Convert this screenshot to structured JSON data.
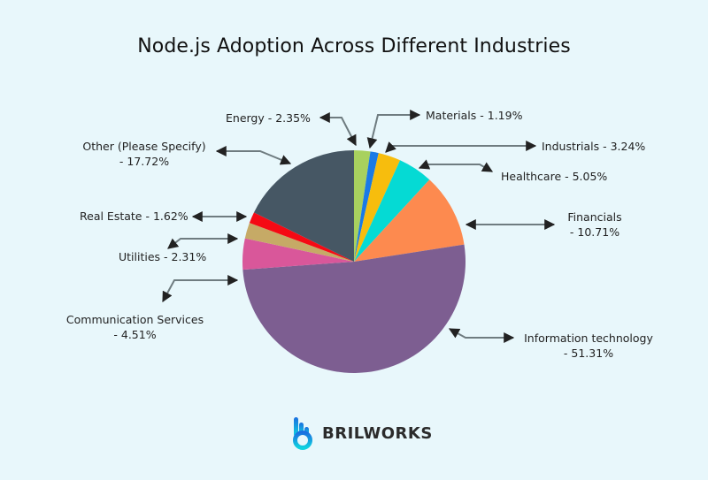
{
  "title": "Node.js Adoption Across Different Industries",
  "brand": {
    "name": "BRILWORKS"
  },
  "chart_data": {
    "type": "pie",
    "title": "Node.js Adoption Across Different Industries",
    "start_angle": "top, clockwise",
    "slices": [
      {
        "label": "Energy",
        "value": 2.35,
        "color": "#a8d15e",
        "text": "Energy - 2.35%"
      },
      {
        "label": "Materials",
        "value": 1.19,
        "color": "#1a7ae6",
        "text": "Materials - 1.19%"
      },
      {
        "label": "Industrials",
        "value": 3.24,
        "color": "#f7bd0d",
        "text": "Industrials - 3.24%"
      },
      {
        "label": "Healthcare",
        "value": 5.05,
        "color": "#05dad4",
        "text": "Healthcare - 5.05%"
      },
      {
        "label": "Financials",
        "value": 10.71,
        "color": "#fd8a4f",
        "text": "Financials - 10.71%"
      },
      {
        "label": "Information technology",
        "value": 51.31,
        "color": "#7d5e91",
        "text": "Information technology - 51.31%"
      },
      {
        "label": "Communication Services",
        "value": 4.51,
        "color": "#d9579a",
        "text": "Communication Services - 4.51%"
      },
      {
        "label": "Utilities",
        "value": 2.31,
        "color": "#c6aa66",
        "text": "Utilities - 2.31%"
      },
      {
        "label": "Real Estate",
        "value": 1.62,
        "color": "#f50a14",
        "text": "Real Estate - 1.62%"
      },
      {
        "label": "Other (Please Specify)",
        "value": 17.72,
        "color": "#465764",
        "text": "Other (Please Specify) - 17.72%"
      }
    ]
  },
  "labels": {
    "energy": "Energy - 2.35%",
    "materials": "Materials - 1.19%",
    "industrials": "Industrials - 3.24%",
    "healthcare": "Healthcare - 5.05%",
    "financials_1": "Financials",
    "financials_2": "- 10.71%",
    "it_1": "Information technology",
    "it_2": "- 51.31%",
    "comm_1": "Communication Services",
    "comm_2": "- 4.51%",
    "utilities": "Utilities - 2.31%",
    "realestate": "Real Estate - 1.62%",
    "other_1": "Other (Please Specify)",
    "other_2": "- 17.72%"
  }
}
